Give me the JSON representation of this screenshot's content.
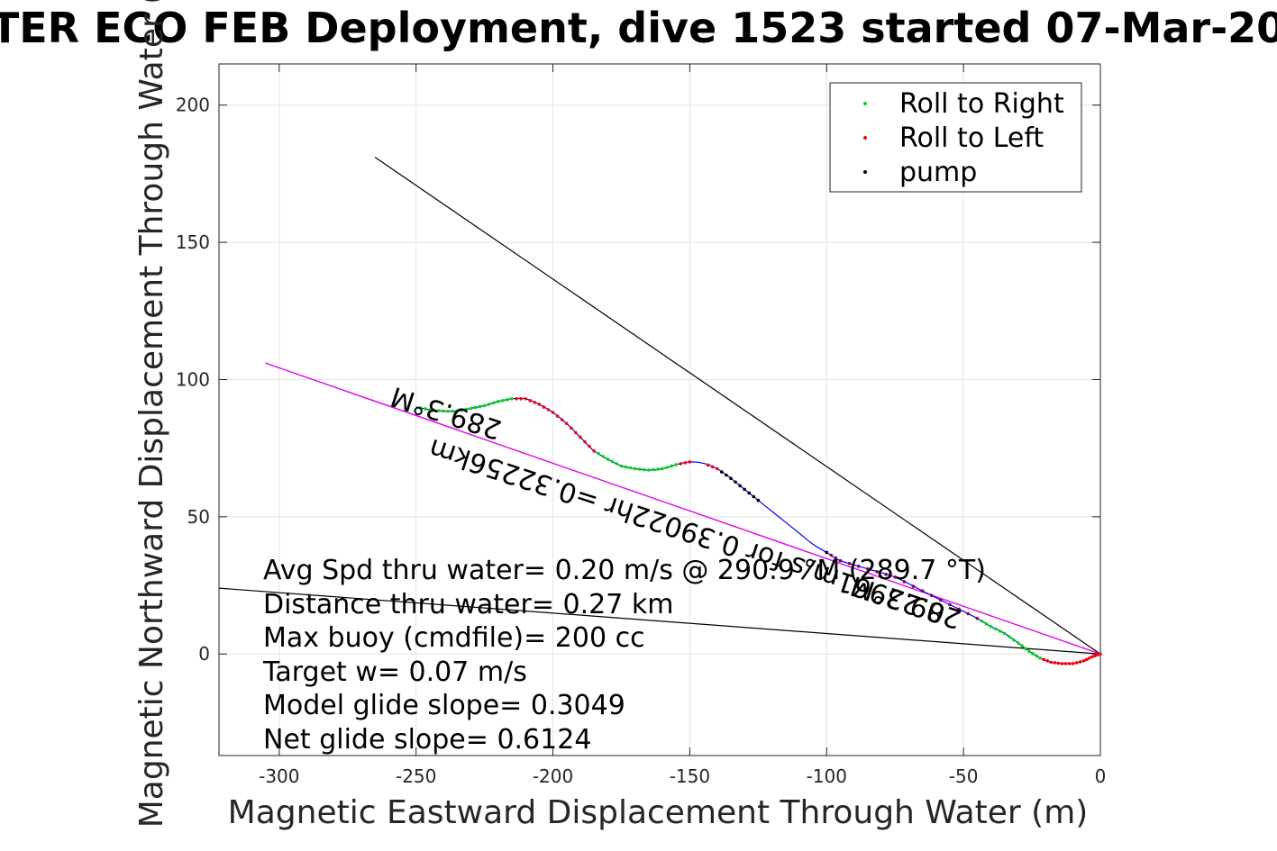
{
  "chart_data": {
    "type": "line",
    "title": "TER ECO FEB Deployment, dive 1523 started 07-Mar-20",
    "xlabel": "Magnetic Eastward Displacement Through Water (m)",
    "ylabel": "Magnetic Northward Displacement Through Water (",
    "xlim": [
      -322,
      0
    ],
    "ylim": [
      -37,
      215
    ],
    "xticks": [
      "-300",
      "-250",
      "-200",
      "-150",
      "-100",
      "-50",
      "0"
    ],
    "yticks": [
      "0",
      "50",
      "100",
      "150",
      "200"
    ],
    "xtick_values": [
      -300,
      -250,
      -200,
      -150,
      -100,
      -50,
      0
    ],
    "ytick_values": [
      0,
      50,
      100,
      150,
      200
    ],
    "grid": true,
    "legend": {
      "placement": "top-right",
      "entries": [
        {
          "label": "Roll to Right",
          "color": "#00dd00"
        },
        {
          "label": "Roll to Left",
          "color": "#ff0000"
        },
        {
          "label": "pump",
          "color": "#000000"
        }
      ]
    },
    "track": {
      "name": "glider track",
      "color": "#0000ff",
      "x": [
        0,
        -3,
        -6,
        -10,
        -14,
        -18,
        -22,
        -26,
        -30,
        -35,
        -40,
        -45,
        -55,
        -65,
        -75,
        -85,
        -95,
        -100,
        -105,
        -110,
        -115,
        -120,
        -125,
        -130,
        -135,
        -140,
        -145,
        -150,
        -155,
        -160,
        -165,
        -170,
        -175,
        -180,
        -185,
        -190,
        -195,
        -200,
        -205,
        -210,
        -215,
        -220,
        -225,
        -230,
        -235,
        -240,
        -245,
        -250
      ],
      "y": [
        0,
        -1,
        -2.5,
        -3.5,
        -3.5,
        -3,
        -1.5,
        1,
        4,
        7.5,
        10,
        13,
        18,
        23,
        28,
        31,
        34,
        37,
        40,
        44,
        48,
        52,
        56,
        60,
        64,
        67.5,
        69.5,
        70,
        69,
        67.5,
        67,
        67.5,
        68.5,
        71,
        74,
        79,
        84,
        88,
        91,
        93,
        93,
        92,
        90.5,
        89.5,
        88.5,
        88.5,
        89,
        90
      ]
    },
    "heading_lines": [
      {
        "name": "heading-line-1",
        "x": [
          0,
          -265
        ],
        "y": [
          0,
          181
        ],
        "color": "#000000"
      },
      {
        "name": "heading-line-2",
        "x": [
          0,
          -305
        ],
        "y": [
          0,
          106
        ],
        "color": "#000000"
      },
      {
        "name": "heading-line-3",
        "x": [
          0,
          -322
        ],
        "y": [
          0,
          24
        ],
        "color": "#000000"
      }
    ],
    "magenta_line": {
      "name": "mean-track-line",
      "x": [
        0,
        -305
      ],
      "y": [
        0,
        106
      ],
      "color": "#ff00ff"
    },
    "rolled_labels": [
      {
        "text": "289.3°M",
        "x": -238,
        "y": 91,
        "rotation": 198
      },
      {
        "text": "0.22961m/s for 0.39022hr =0.32256km",
        "x": -150,
        "y": 48,
        "rotation": 198
      },
      {
        "text": "289.3°M",
        "x": -70,
        "y": 22,
        "rotation": 198
      }
    ],
    "stats": [
      "Avg Spd thru water=  0.20 m/s @ 290.9 °M (289.7 °T)",
      "Distance thru water=  0.27 km",
      "Max buoy (cmdfile)= 200 cc",
      "Target w= 0.07 m/s",
      "Model glide slope= 0.3049",
      "Net glide slope= 0.6124"
    ]
  }
}
